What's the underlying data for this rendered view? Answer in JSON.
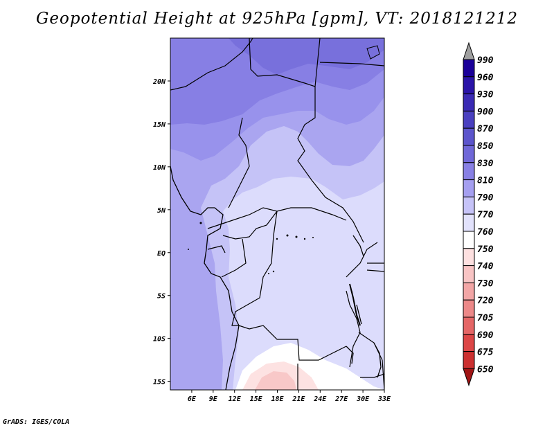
{
  "title": "Geopotential Height at 925hPa [gpm], VT: 2018121212",
  "footer": "GrADS: IGES/COLA",
  "map": {
    "lon_range": [
      3,
      33
    ],
    "lat_range": [
      -16,
      25
    ],
    "x_ticks": [
      {
        "lon": 6,
        "label": "6E"
      },
      {
        "lon": 9,
        "label": "9E"
      },
      {
        "lon": 12,
        "label": "12E"
      },
      {
        "lon": 15,
        "label": "15E"
      },
      {
        "lon": 18,
        "label": "18E"
      },
      {
        "lon": 21,
        "label": "21E"
      },
      {
        "lon": 24,
        "label": "24E"
      },
      {
        "lon": 27,
        "label": "27E"
      },
      {
        "lon": 30,
        "label": "30E"
      },
      {
        "lon": 33,
        "label": "33E"
      }
    ],
    "y_ticks": [
      {
        "lat": 20,
        "label": "20N"
      },
      {
        "lat": 15,
        "label": "15N"
      },
      {
        "lat": 10,
        "label": "10N"
      },
      {
        "lat": 5,
        "label": "5N"
      },
      {
        "lat": 0,
        "label": "EQ"
      },
      {
        "lat": -5,
        "label": "5S"
      },
      {
        "lat": -10,
        "label": "10S"
      },
      {
        "lat": -15,
        "label": "15S"
      }
    ]
  },
  "colorbar": {
    "levels": [
      "990",
      "960",
      "930",
      "900",
      "870",
      "850",
      "830",
      "810",
      "790",
      "770",
      "760",
      "750",
      "740",
      "730",
      "720",
      "705",
      "690",
      "675",
      "650"
    ],
    "colors": [
      "#1a0099",
      "#2a14a8",
      "#3a2ab4",
      "#4a40c0",
      "#5c55cc",
      "#7068d8",
      "#8880e4",
      "#a59ff0",
      "#c6c3f8",
      "#e2e2fc",
      "#ffffff",
      "#fde0e0",
      "#f8c4c4",
      "#f2a6a6",
      "#ec8888",
      "#e56666",
      "#dc4646",
      "#cc3030",
      "#b81e1e",
      "#a01414"
    ],
    "top_arrow_color": "#a0a0a0"
  }
}
